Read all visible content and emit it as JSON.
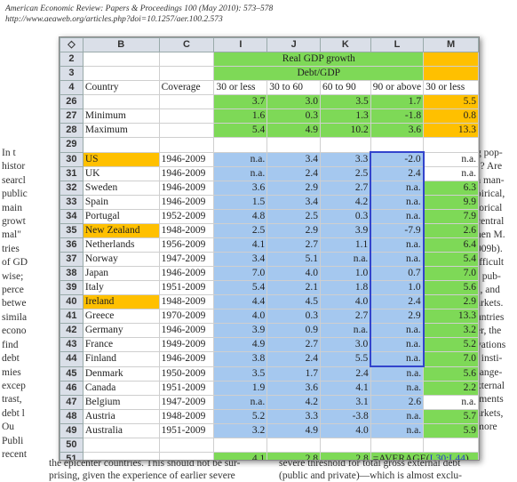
{
  "journal": {
    "line1": "American Economic Review: Papers & Proceedings 100 (May 2010): 573–578",
    "line2": "http://www.aeaweb.org/articles.php?doi=10.1257/aer.100.2.573"
  },
  "left_text": [
    "In t",
    "histor",
    "searcl",
    "public",
    "main",
    "growt",
    "mal\"",
    "tries",
    "of GD",
    "wise;",
    "perce",
    "betwe",
    "simila",
    "econo",
    "find",
    "debt",
    "mies",
    "excep",
    "trast,",
    "debt l",
    "Ou",
    "Publi",
    "recent"
  ],
  "right_text": [
    "g pop-",
    "s? Are",
    "a man-",
    "",
    "oirical,",
    "torical",
    "central",
    "nen M.",
    "009b).",
    "ifficult",
    "f pub-",
    "s, and",
    "arkets.",
    "untries",
    "er, the",
    "vations",
    ", insti-",
    "range-",
    "",
    "xternal",
    "iments",
    "arkets,",
    "more"
  ],
  "bottom_left": [
    "the epicenter countries. This should not be sur-",
    "prising, given the experience of earlier severe"
  ],
  "bottom_right": [
    "severe threshold for total gross external debt",
    "(public and private)—which is almost exclu-"
  ],
  "sheet": {
    "col_letters": [
      "B",
      "C",
      "I",
      "J",
      "K",
      "L",
      "M"
    ],
    "corner": "◇",
    "title1": "Real GDP growth",
    "title2": "Debt/GDP",
    "headers": [
      "Country",
      "Coverage",
      "30 or less",
      "30 to 60",
      "60 to 90",
      "90 or above",
      "30 or less"
    ],
    "row_numbers": {
      "r2": "2",
      "r3": "3",
      "r4": "4"
    },
    "summary_rows": [
      {
        "n": "26",
        "label": "",
        "vals": [
          "3.7",
          "3.0",
          "3.5",
          "1.7",
          "5.5"
        ]
      },
      {
        "n": "27",
        "label": "Minimum",
        "vals": [
          "1.6",
          "0.3",
          "1.3",
          "-1.8",
          "0.8"
        ]
      },
      {
        "n": "28",
        "label": "Maximum",
        "vals": [
          "5.4",
          "4.9",
          "10.2",
          "3.6",
          "13.3"
        ]
      },
      {
        "n": "29",
        "label": "",
        "vals": [
          "",
          "",
          "",
          "",
          ""
        ]
      }
    ],
    "rows": [
      {
        "n": "30",
        "country": "US",
        "cov": "1946-2009",
        "v": [
          "n.a.",
          "3.4",
          "3.3",
          "-2.0",
          "n.a."
        ],
        "hl": true
      },
      {
        "n": "31",
        "country": "UK",
        "cov": "1946-2009",
        "v": [
          "n.a.",
          "2.4",
          "2.5",
          "2.4",
          "n.a."
        ],
        "hl": false
      },
      {
        "n": "32",
        "country": "Sweden",
        "cov": "1946-2009",
        "v": [
          "3.6",
          "2.9",
          "2.7",
          "n.a.",
          "6.3"
        ],
        "hl": false
      },
      {
        "n": "33",
        "country": "Spain",
        "cov": "1946-2009",
        "v": [
          "1.5",
          "3.4",
          "4.2",
          "n.a.",
          "9.9"
        ],
        "hl": false
      },
      {
        "n": "34",
        "country": "Portugal",
        "cov": "1952-2009",
        "v": [
          "4.8",
          "2.5",
          "0.3",
          "n.a.",
          "7.9"
        ],
        "hl": false
      },
      {
        "n": "35",
        "country": "New Zealand",
        "cov": "1948-2009",
        "v": [
          "2.5",
          "2.9",
          "3.9",
          "-7.9",
          "2.6"
        ],
        "hl": true
      },
      {
        "n": "36",
        "country": "Netherlands",
        "cov": "1956-2009",
        "v": [
          "4.1",
          "2.7",
          "1.1",
          "n.a.",
          "6.4"
        ],
        "hl": false
      },
      {
        "n": "37",
        "country": "Norway",
        "cov": "1947-2009",
        "v": [
          "3.4",
          "5.1",
          "n.a.",
          "n.a.",
          "5.4"
        ],
        "hl": false
      },
      {
        "n": "38",
        "country": "Japan",
        "cov": "1946-2009",
        "v": [
          "7.0",
          "4.0",
          "1.0",
          "0.7",
          "7.0"
        ],
        "hl": false
      },
      {
        "n": "39",
        "country": "Italy",
        "cov": "1951-2009",
        "v": [
          "5.4",
          "2.1",
          "1.8",
          "1.0",
          "5.6"
        ],
        "hl": false
      },
      {
        "n": "40",
        "country": "Ireland",
        "cov": "1948-2009",
        "v": [
          "4.4",
          "4.5",
          "4.0",
          "2.4",
          "2.9"
        ],
        "hl": true
      },
      {
        "n": "41",
        "country": "Greece",
        "cov": "1970-2009",
        "v": [
          "4.0",
          "0.3",
          "2.7",
          "2.9",
          "13.3"
        ],
        "hl": false
      },
      {
        "n": "42",
        "country": "Germany",
        "cov": "1946-2009",
        "v": [
          "3.9",
          "0.9",
          "n.a.",
          "n.a.",
          "3.2"
        ],
        "hl": false
      },
      {
        "n": "43",
        "country": "France",
        "cov": "1949-2009",
        "v": [
          "4.9",
          "2.7",
          "3.0",
          "n.a.",
          "5.2"
        ],
        "hl": false
      },
      {
        "n": "44",
        "country": "Finland",
        "cov": "1946-2009",
        "v": [
          "3.8",
          "2.4",
          "5.5",
          "n.a.",
          "7.0"
        ],
        "hl": false
      },
      {
        "n": "45",
        "country": "Denmark",
        "cov": "1950-2009",
        "v": [
          "3.5",
          "1.7",
          "2.4",
          "n.a.",
          "5.6"
        ],
        "hl": false
      },
      {
        "n": "46",
        "country": "Canada",
        "cov": "1951-2009",
        "v": [
          "1.9",
          "3.6",
          "4.1",
          "n.a.",
          "2.2"
        ],
        "hl": false
      },
      {
        "n": "47",
        "country": "Belgium",
        "cov": "1947-2009",
        "v": [
          "n.a.",
          "4.2",
          "3.1",
          "2.6",
          "n.a."
        ],
        "hl": false
      },
      {
        "n": "48",
        "country": "Austria",
        "cov": "1948-2009",
        "v": [
          "5.2",
          "3.3",
          "-3.8",
          "n.a.",
          "5.7"
        ],
        "hl": false
      },
      {
        "n": "49",
        "country": "Australia",
        "cov": "1951-2009",
        "v": [
          "3.2",
          "4.9",
          "4.0",
          "n.a.",
          "5.9"
        ],
        "hl": false
      }
    ],
    "blank_row": "50",
    "avg_row": {
      "n": "51",
      "vals": [
        "4.1",
        "2.8",
        "2.8"
      ],
      "formula_prefix": "=AVERAGE(",
      "formula_ref": "L30:L44",
      "formula_suffix": ")"
    }
  }
}
